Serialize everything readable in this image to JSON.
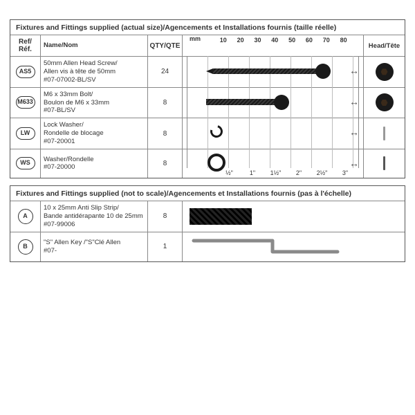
{
  "panel1": {
    "title": "Fixtures and Fittings supplied (actual size)/Agencements et Installations fournis (taille réelle)",
    "headers": {
      "ref": "Ref/\nRéf.",
      "name": "Name/Nom",
      "qty": "QTY/QTE",
      "head": "Head/Tête"
    },
    "mm_label": "mm",
    "mm_ticks": [
      "10",
      "20",
      "30",
      "40",
      "50",
      "60",
      "70",
      "80"
    ],
    "in_ticks": [
      "½\"",
      "1\"",
      "1½\"",
      "2\"",
      "2½\"",
      "3\""
    ],
    "items": [
      {
        "ref": "AS5",
        "name": "50mm Allen Head Screw/\nAllen vis à tête de 50mm\n#07-07002-BL/SV",
        "qty": "24",
        "kind": "screw",
        "len": 150
      },
      {
        "ref": "M633",
        "name": "M6 x 33mm Bolt/\nBoulon de M6 x 33mm\n#07-BL/SV",
        "qty": "8",
        "kind": "bolt",
        "len": 100
      },
      {
        "ref": "LW",
        "name": "Lock Washer/\nRondelle de blocage\n#07-20001",
        "qty": "8",
        "kind": "lockwasher"
      },
      {
        "ref": "WS",
        "name": "Washer/Rondelle\n#07-20000",
        "qty": "8",
        "kind": "washer"
      }
    ]
  },
  "panel2": {
    "title": "Fixtures and Fittings supplied (not to scale)/Agencements et Installations fournis (pas à l'échelle)",
    "items": [
      {
        "ref": "A",
        "name": "10 x 25mm Anti Slip Strip/\nBande antidérapante 10 de 25mm\n#07-99006",
        "qty": "8",
        "kind": "antislip"
      },
      {
        "ref": "B",
        "name": "\"S\" Allen Key /\"S\"Clé Allen\n#07-",
        "qty": "1",
        "kind": "allenkey"
      }
    ]
  },
  "colors": {
    "border": "#555",
    "ink": "#1a1a1a",
    "grid": "#bbb"
  }
}
